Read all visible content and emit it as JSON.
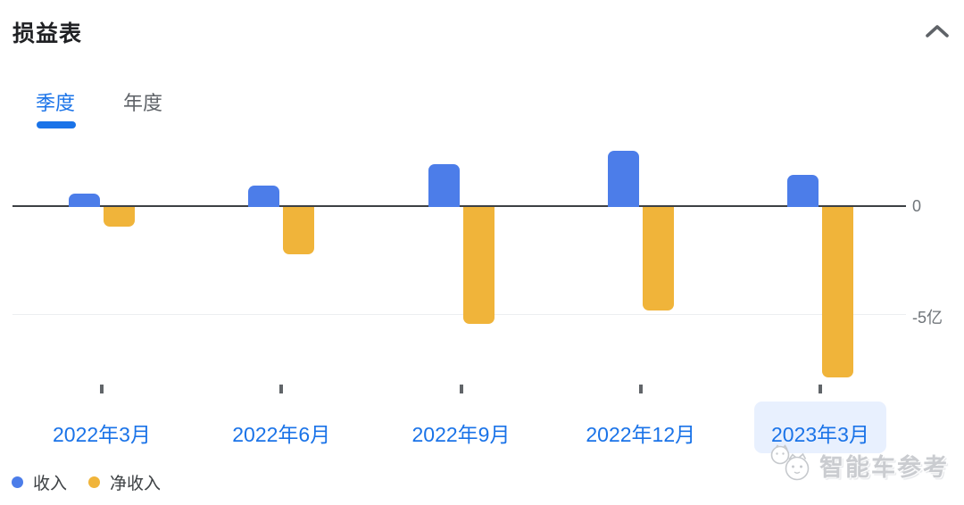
{
  "header": {
    "title": "损益表",
    "collapse_icon": "chevron-up"
  },
  "tabs": [
    {
      "label": "季度",
      "active": true
    },
    {
      "label": "年度",
      "active": false
    }
  ],
  "chart_data": {
    "type": "bar",
    "categories": [
      "2022年3月",
      "2022年6月",
      "2022年9月",
      "2022年12月",
      "2023年3月"
    ],
    "series": [
      {
        "name": "收入",
        "color": "#4c7de9",
        "values": [
          0.6,
          1.0,
          2.0,
          2.6,
          1.5
        ]
      },
      {
        "name": "净收入",
        "color": "#f0b43a",
        "values": [
          -0.9,
          -2.2,
          -5.4,
          -4.8,
          -7.9
        ]
      }
    ],
    "unit": "亿",
    "ylim": [
      -8.5,
      3.5
    ],
    "y_ticks": [
      {
        "value": 0,
        "label": "0"
      },
      {
        "value": -5,
        "label": "-5亿"
      }
    ],
    "grid": "horizontal gridline at -5亿 only, solid dark zero axis",
    "legend_position": "bottom-left",
    "highlighted_category": "2023年3月"
  },
  "legend": [
    {
      "label": "收入",
      "color": "#4c7de9"
    },
    {
      "label": "净收入",
      "color": "#f0b43a"
    }
  ],
  "watermark": {
    "text": "智能车参考",
    "icon": "cat-chat-bubbles-logo"
  },
  "colors": {
    "accent_blue": "#1a73e8",
    "bar_blue": "#4c7de9",
    "bar_yellow": "#f0b43a",
    "highlight_bg": "#e8f0fe",
    "axis_line": "#3c4043",
    "grid_line": "#eceef0",
    "muted_text": "#5f6368"
  }
}
